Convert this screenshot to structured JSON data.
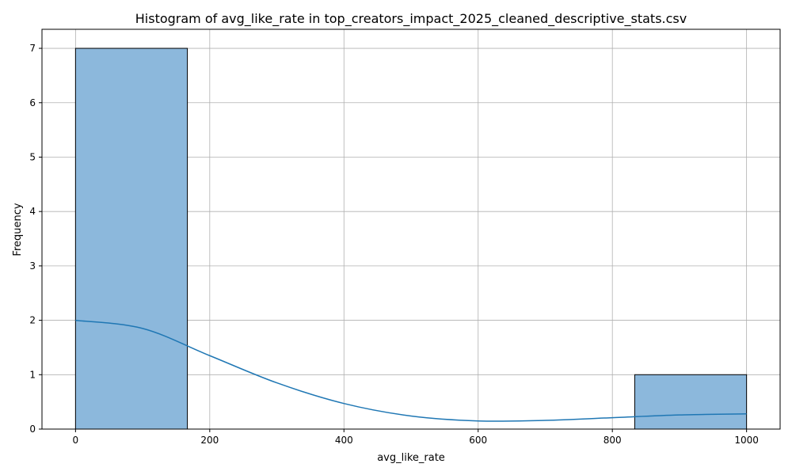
{
  "chart_data": {
    "type": "bar",
    "title": "Histogram of avg_like_rate in top_creators_impact_2025_cleaned_descriptive_stats.csv",
    "xlabel": "avg_like_rate",
    "ylabel": "Frequency",
    "xlim": [
      -50,
      1050
    ],
    "ylim": [
      0,
      7.35
    ],
    "xticks": [
      0,
      200,
      400,
      600,
      800,
      1000
    ],
    "yticks": [
      0,
      1,
      2,
      3,
      4,
      5,
      6,
      7
    ],
    "grid": true,
    "bins": [
      {
        "x0": 0,
        "x1": 166.67,
        "count": 7
      },
      {
        "x0": 166.67,
        "x1": 333.33,
        "count": 0
      },
      {
        "x0": 333.33,
        "x1": 500,
        "count": 0
      },
      {
        "x0": 500,
        "x1": 666.67,
        "count": 0
      },
      {
        "x0": 666.67,
        "x1": 833.33,
        "count": 0
      },
      {
        "x0": 833.33,
        "x1": 1000,
        "count": 1
      }
    ],
    "kde": {
      "x": [
        0,
        100,
        200,
        300,
        400,
        500,
        600,
        700,
        800,
        900,
        1000
      ],
      "y": [
        2.0,
        1.85,
        1.35,
        0.85,
        0.47,
        0.24,
        0.15,
        0.16,
        0.21,
        0.26,
        0.28
      ]
    },
    "colors": {
      "bar_fill": "#8cb8dc",
      "bar_edge": "#000000",
      "kde_line": "#1f77b4",
      "grid": "#b0b0b0"
    }
  }
}
